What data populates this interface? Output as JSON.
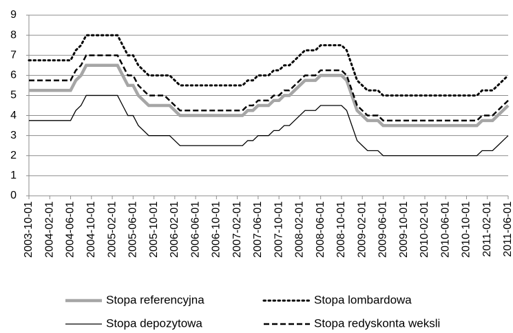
{
  "chart_data": {
    "type": "line",
    "categories": [
      "2003-10-01",
      null,
      null,
      null,
      "2004-02-01",
      null,
      null,
      null,
      "2004-06-01",
      null,
      null,
      null,
      "2004-10-01",
      null,
      null,
      null,
      "2005-02-01",
      null,
      null,
      null,
      "2005-06-01",
      null,
      null,
      null,
      "2005-10-01",
      null,
      null,
      null,
      "2006-02-01",
      null,
      null,
      null,
      "2006-06-01",
      null,
      null,
      null,
      "2006-10-01",
      null,
      null,
      null,
      "2007-02-01",
      null,
      null,
      null,
      "2007-06-01",
      null,
      null,
      null,
      "2007-10-01",
      null,
      null,
      null,
      "2008-02-01",
      null,
      null,
      null,
      "2008-06-01",
      null,
      null,
      null,
      "2008-10-01",
      null,
      null,
      null,
      "2009-02-01",
      null,
      null,
      null,
      "2009-06-01",
      null,
      null,
      null,
      "2009-10-01",
      null,
      null,
      null,
      "2010-02-01",
      null,
      null,
      null,
      "2010-06-01",
      null,
      null,
      null,
      "2010-10-01",
      null,
      null,
      null,
      "2011-02-01",
      null,
      null,
      null,
      "2011-06-01"
    ],
    "series": [
      {
        "name": "Stopa referencyjna",
        "color": "#a6a6a6",
        "style": "solid",
        "values": [
          5.25,
          5.25,
          5.25,
          5.25,
          5.25,
          5.25,
          5.25,
          5.25,
          5.25,
          5.75,
          6,
          6.5,
          6.5,
          6.5,
          6.5,
          6.5,
          6.5,
          6.5,
          6,
          5.5,
          5.5,
          5,
          4.75,
          4.5,
          4.5,
          4.5,
          4.5,
          4.5,
          4.25,
          4,
          4,
          4,
          4,
          4,
          4,
          4,
          4,
          4,
          4,
          4,
          4,
          4,
          4.25,
          4.25,
          4.5,
          4.5,
          4.5,
          4.75,
          4.75,
          5,
          5,
          5.25,
          5.5,
          5.75,
          5.75,
          5.75,
          6,
          6,
          6,
          6,
          6,
          5.75,
          5,
          4.25,
          4,
          3.75,
          3.75,
          3.75,
          3.5,
          3.5,
          3.5,
          3.5,
          3.5,
          3.5,
          3.5,
          3.5,
          3.5,
          3.5,
          3.5,
          3.5,
          3.5,
          3.5,
          3.5,
          3.5,
          3.5,
          3.5,
          3.5,
          3.75,
          3.75,
          3.75,
          4,
          4.25,
          4.5
        ]
      },
      {
        "name": "Stopa lombardowa",
        "color": "#000000",
        "style": "dotted",
        "values": [
          6.75,
          6.75,
          6.75,
          6.75,
          6.75,
          6.75,
          6.75,
          6.75,
          6.75,
          7.25,
          7.5,
          8,
          8,
          8,
          8,
          8,
          8,
          8,
          7.5,
          7,
          7,
          6.5,
          6.25,
          6,
          6,
          6,
          6,
          6,
          5.75,
          5.5,
          5.5,
          5.5,
          5.5,
          5.5,
          5.5,
          5.5,
          5.5,
          5.5,
          5.5,
          5.5,
          5.5,
          5.5,
          5.75,
          5.75,
          6,
          6,
          6,
          6.25,
          6.25,
          6.5,
          6.5,
          6.75,
          7,
          7.25,
          7.25,
          7.25,
          7.5,
          7.5,
          7.5,
          7.5,
          7.5,
          7.25,
          6.5,
          5.75,
          5.5,
          5.25,
          5.25,
          5.25,
          5,
          5,
          5,
          5,
          5,
          5,
          5,
          5,
          5,
          5,
          5,
          5,
          5,
          5,
          5,
          5,
          5,
          5,
          5,
          5.25,
          5.25,
          5.25,
          5.5,
          5.75,
          6
        ]
      },
      {
        "name": "Stopa depozytowa",
        "color": "#000000",
        "style": "thin",
        "values": [
          3.75,
          3.75,
          3.75,
          3.75,
          3.75,
          3.75,
          3.75,
          3.75,
          3.75,
          4.25,
          4.5,
          5,
          5,
          5,
          5,
          5,
          5,
          5,
          4.5,
          4,
          4,
          3.5,
          3.25,
          3,
          3,
          3,
          3,
          3,
          2.75,
          2.5,
          2.5,
          2.5,
          2.5,
          2.5,
          2.5,
          2.5,
          2.5,
          2.5,
          2.5,
          2.5,
          2.5,
          2.5,
          2.75,
          2.75,
          3,
          3,
          3,
          3.25,
          3.25,
          3.5,
          3.5,
          3.75,
          4,
          4.25,
          4.25,
          4.25,
          4.5,
          4.5,
          4.5,
          4.5,
          4.5,
          4.25,
          3.5,
          2.75,
          2.5,
          2.25,
          2.25,
          2.25,
          2,
          2,
          2,
          2,
          2,
          2,
          2,
          2,
          2,
          2,
          2,
          2,
          2,
          2,
          2,
          2,
          2,
          2,
          2,
          2.25,
          2.25,
          2.25,
          2.5,
          2.75,
          3
        ]
      },
      {
        "name": "Stopa redyskonta weksli",
        "color": "#000000",
        "style": "dashed",
        "values": [
          5.75,
          5.75,
          5.75,
          5.75,
          5.75,
          5.75,
          5.75,
          5.75,
          5.75,
          6.25,
          6.5,
          7,
          7,
          7,
          7,
          7,
          7,
          7,
          6.5,
          6,
          6,
          5.5,
          5.25,
          5,
          5,
          5,
          5,
          4.75,
          4.5,
          4.25,
          4.25,
          4.25,
          4.25,
          4.25,
          4.25,
          4.25,
          4.25,
          4.25,
          4.25,
          4.25,
          4.25,
          4.25,
          4.5,
          4.5,
          4.75,
          4.75,
          4.75,
          5,
          5,
          5.25,
          5.25,
          5.5,
          5.75,
          6,
          6,
          6,
          6.25,
          6.25,
          6.25,
          6.25,
          6.25,
          6,
          5.25,
          4.5,
          4.25,
          4,
          4,
          4,
          3.75,
          3.75,
          3.75,
          3.75,
          3.75,
          3.75,
          3.75,
          3.75,
          3.75,
          3.75,
          3.75,
          3.75,
          3.75,
          3.75,
          3.75,
          3.75,
          3.75,
          3.75,
          3.75,
          4,
          4,
          4,
          4.25,
          4.5,
          4.75
        ]
      }
    ],
    "ylim": [
      0,
      9
    ],
    "yticks": [
      0,
      1,
      2,
      3,
      4,
      5,
      6,
      7,
      8,
      9
    ],
    "grid": true
  }
}
